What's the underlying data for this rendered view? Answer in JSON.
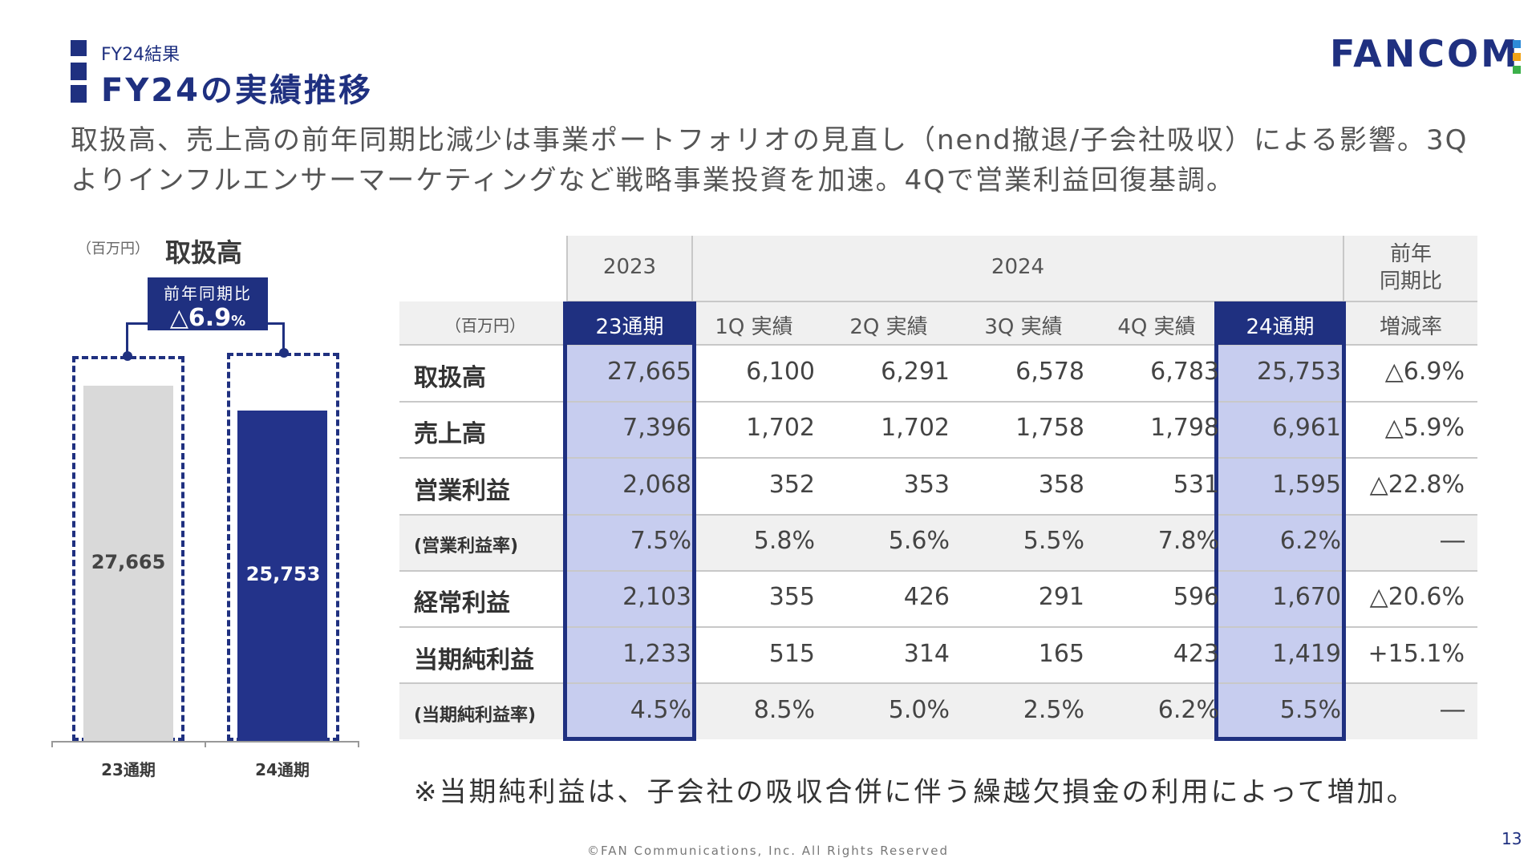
{
  "header": {
    "section_label": "FY24結果",
    "title": "FY24の実績推移",
    "logo_text": "FANCOM",
    "logo_dot_colors": [
      "#2e8bd8",
      "#f0a318",
      "#3cb04a"
    ],
    "headline": "取扱高、売上高の前年同期比減少は事業ポートフォリオの見直し（nend撤退/子会社吸収）による影響。3Qよりインフルエンサーマーケティングなど戦略事業投資を加速。4Qで営業利益回復基調。"
  },
  "mini_chart": {
    "unit": "（百万円）",
    "title": "取扱高",
    "yoy_label": "前年同期比",
    "yoy_value": "△6.9",
    "yoy_unit": "%",
    "colors": {
      "prev": "#d9d9d9",
      "curr": "#23338a"
    },
    "chart_data": {
      "type": "bar",
      "categories": [
        "23通期",
        "24通期"
      ],
      "values": [
        27665,
        25753
      ],
      "value_labels": [
        "27,665",
        "25,753"
      ]
    }
  },
  "table": {
    "unit": "（百万円）",
    "group_headers": [
      "2023",
      "2024",
      "前年\n同期比"
    ],
    "yoy_header_l1": "前年",
    "yoy_header_l2": "同期比",
    "columns": [
      "23通期",
      "1Q 実績",
      "2Q 実績",
      "3Q 実績",
      "4Q 実績",
      "24通期",
      "増減率"
    ],
    "rows": [
      {
        "label": "取扱高",
        "small": false,
        "values": [
          "27,665",
          "6,100",
          "6,291",
          "6,578",
          "6,783",
          "25,753",
          "△6.9%"
        ]
      },
      {
        "label": "売上高",
        "small": false,
        "values": [
          "7,396",
          "1,702",
          "1,702",
          "1,758",
          "1,798",
          "6,961",
          "△5.9%"
        ]
      },
      {
        "label": "営業利益",
        "small": false,
        "values": [
          "2,068",
          "352",
          "353",
          "358",
          "531",
          "1,595",
          "△22.8%"
        ]
      },
      {
        "label": "(営業利益率)",
        "small": true,
        "values": [
          "7.5%",
          "5.8%",
          "5.6%",
          "5.5%",
          "7.8%",
          "6.2%",
          "―"
        ]
      },
      {
        "label": "経常利益",
        "small": false,
        "values": [
          "2,103",
          "355",
          "426",
          "291",
          "596",
          "1,670",
          "△20.6%"
        ]
      },
      {
        "label": "当期純利益",
        "small": false,
        "values": [
          "1,233",
          "515",
          "314",
          "165",
          "423",
          "1,419",
          "+15.1%"
        ]
      },
      {
        "label": "(当期純利益率)",
        "small": true,
        "values": [
          "4.5%",
          "8.5%",
          "5.0%",
          "2.5%",
          "6.2%",
          "5.5%",
          "―"
        ]
      }
    ]
  },
  "footnote": "※当期純利益は、子会社の吸収合併に伴う繰越欠損金の利用によって増加。",
  "copyright": "©FAN Communications, Inc. All Rights Reserved",
  "page_number": "13"
}
